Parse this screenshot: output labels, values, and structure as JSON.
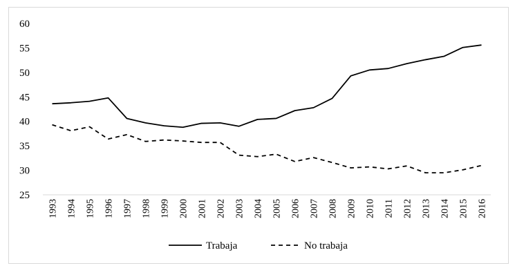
{
  "chart_data": {
    "type": "line",
    "title": "",
    "xlabel": "",
    "ylabel": "",
    "ylim": [
      25,
      60
    ],
    "yticks": [
      25,
      30,
      35,
      40,
      45,
      50,
      55,
      60
    ],
    "grid": false,
    "legend_position": "bottom",
    "categories": [
      "1993",
      "1994",
      "1995",
      "1996",
      "1997",
      "1998",
      "1999",
      "2000",
      "2001",
      "2002",
      "2003",
      "2004",
      "2005",
      "2006",
      "2007",
      "2008",
      "2009",
      "2010",
      "2011",
      "2012",
      "2013",
      "2014",
      "2015",
      "2016"
    ],
    "series": [
      {
        "name": "Trabaja",
        "style": "solid",
        "color": "#000000",
        "values": [
          43.6,
          43.8,
          44.1,
          44.8,
          40.6,
          39.7,
          39.1,
          38.8,
          39.6,
          39.7,
          39.0,
          40.4,
          40.6,
          42.2,
          42.8,
          44.7,
          49.3,
          50.5,
          50.8,
          51.8,
          52.6,
          53.3,
          55.1,
          55.6
        ]
      },
      {
        "name": "No trabaja",
        "style": "dashed",
        "color": "#000000",
        "values": [
          39.3,
          38.1,
          38.9,
          36.4,
          37.3,
          35.9,
          36.2,
          36.0,
          35.7,
          35.7,
          33.1,
          32.8,
          33.3,
          31.8,
          32.6,
          31.6,
          30.5,
          30.7,
          30.3,
          30.9,
          29.5,
          29.5,
          30.1,
          31.0
        ]
      }
    ]
  }
}
